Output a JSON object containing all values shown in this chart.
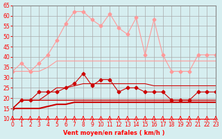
{
  "xlabel": "Vent moyen/en rafales ( km/h )",
  "ylabel": "",
  "xlim": [
    0,
    23
  ],
  "ylim": [
    10,
    65
  ],
  "yticks": [
    10,
    15,
    20,
    25,
    30,
    35,
    40,
    45,
    50,
    55,
    60,
    65
  ],
  "xticks": [
    0,
    1,
    2,
    3,
    4,
    5,
    6,
    7,
    8,
    9,
    10,
    11,
    12,
    13,
    14,
    15,
    16,
    17,
    18,
    19,
    20,
    21,
    22,
    23
  ],
  "bg_color": "#d6eef0",
  "grid_color": "#aaaaaa",
  "line1_x": [
    0,
    1,
    2,
    3,
    4,
    5,
    6,
    7,
    8,
    9,
    10,
    11,
    12,
    13,
    14,
    15,
    16,
    17,
    18,
    19,
    20,
    21,
    22,
    23
  ],
  "line1_y": [
    33,
    37,
    33,
    37,
    41,
    48,
    56,
    62,
    62,
    58,
    55,
    61,
    54,
    51,
    59,
    41,
    58,
    41,
    33,
    33,
    33,
    41,
    41,
    41
  ],
  "line1_color": "#ff9999",
  "line1_marker": "D",
  "line2_x": [
    0,
    1,
    2,
    3,
    4,
    5,
    6,
    7,
    8,
    9,
    10,
    11,
    12,
    13,
    14,
    15,
    16,
    17,
    18,
    19,
    20,
    21,
    22,
    23
  ],
  "line2_y": [
    15,
    19,
    19,
    23,
    23,
    23,
    25,
    27,
    32,
    26,
    29,
    29,
    23,
    25,
    25,
    23,
    23,
    23,
    19,
    19,
    19,
    23,
    23,
    23
  ],
  "line2_color": "#cc0000",
  "line2_marker": "D",
  "line3_x": [
    0,
    1,
    2,
    3,
    4,
    5,
    6,
    7,
    8,
    9,
    10,
    11,
    12,
    13,
    14,
    15,
    16,
    17,
    18,
    19,
    20,
    21,
    22,
    23
  ],
  "line3_y": [
    15,
    19,
    19,
    19,
    19,
    19,
    19,
    19,
    19,
    19,
    19,
    19,
    19,
    19,
    19,
    19,
    19,
    19,
    19,
    19,
    19,
    19,
    19,
    19
  ],
  "line3_color": "#cc0000",
  "line3_marker": null,
  "line4_x": [
    0,
    1,
    2,
    3,
    4,
    5,
    6,
    7,
    8,
    9,
    10,
    11,
    12,
    13,
    14,
    15,
    16,
    17,
    18,
    19,
    20,
    21,
    22,
    23
  ],
  "line4_y": [
    15,
    15,
    15,
    15,
    16,
    17,
    17,
    18,
    18,
    18,
    18,
    18,
    18,
    18,
    18,
    18,
    18,
    18,
    18,
    18,
    18,
    18,
    18,
    18
  ],
  "line4_color": "#cc0000",
  "line4_marker": null,
  "line5_x": [
    0,
    1,
    2,
    3,
    4,
    5,
    6,
    7,
    8,
    9,
    10,
    11,
    12,
    13,
    14,
    15,
    16,
    17,
    18,
    19,
    20,
    21,
    22,
    23
  ],
  "line5_y": [
    33,
    33,
    33,
    33,
    35,
    38,
    38,
    38,
    38,
    38,
    38,
    38,
    38,
    38,
    38,
    38,
    38,
    38,
    38,
    38,
    38,
    38,
    38,
    38
  ],
  "line5_color": "#ff9999",
  "line5_marker": null,
  "line6_x": [
    0,
    1,
    2,
    3,
    4,
    5,
    6,
    7,
    8,
    9,
    10,
    11,
    12,
    13,
    14,
    15,
    16,
    17,
    18,
    19,
    20,
    21,
    22,
    23
  ],
  "line6_y": [
    15,
    19,
    19,
    19,
    22,
    25,
    25,
    26,
    27,
    27,
    27,
    27,
    27,
    27,
    27,
    27,
    26,
    26,
    26,
    26,
    26,
    26,
    26,
    26
  ],
  "line6_color": "#cc0000",
  "line6_marker": null
}
